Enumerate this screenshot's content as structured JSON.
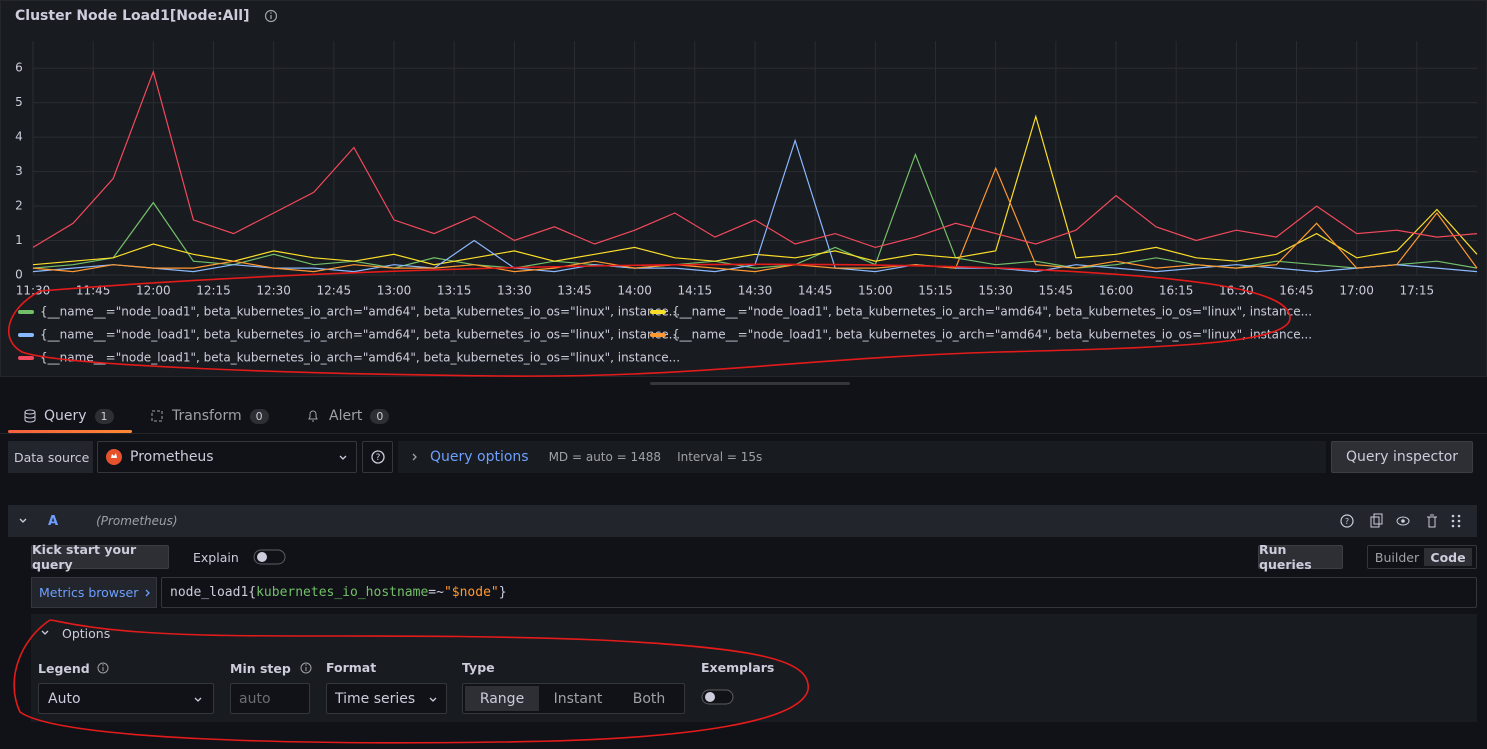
{
  "panel": {
    "title": "Cluster Node Load1[Node:All]"
  },
  "chart_data": {
    "type": "line",
    "x": [
      "11:30",
      "11:40",
      "11:50",
      "12:00",
      "12:10",
      "12:20",
      "12:30",
      "12:40",
      "12:50",
      "13:00",
      "13:10",
      "13:20",
      "13:30",
      "13:40",
      "13:50",
      "14:00",
      "14:10",
      "14:20",
      "14:30",
      "14:40",
      "14:50",
      "15:00",
      "15:10",
      "15:20",
      "15:30",
      "15:40",
      "15:50",
      "16:00",
      "16:10",
      "16:20",
      "16:30",
      "16:40",
      "16:50",
      "17:00",
      "17:10",
      "17:20",
      "17:30"
    ],
    "xlim": [
      "11:30",
      "17:30"
    ],
    "xticks": [
      "11:30",
      "11:45",
      "12:00",
      "12:15",
      "12:30",
      "12:45",
      "13:00",
      "13:15",
      "13:30",
      "13:45",
      "14:00",
      "14:15",
      "14:30",
      "14:45",
      "15:00",
      "15:15",
      "15:30",
      "15:45",
      "16:00",
      "16:15",
      "16:30",
      "16:45",
      "17:00",
      "17:15"
    ],
    "ylim": [
      0,
      6.5
    ],
    "yticks": [
      0,
      1,
      2,
      3,
      4,
      5,
      6
    ],
    "grid": true,
    "legend": "bottom",
    "series": [
      {
        "name": "{__name__=\"node_load1\", beta_kubernetes_io_arch=\"amd64\", beta_kubernetes_io_os=\"linux\", instance...",
        "color": "#73bf69",
        "values": [
          0.2,
          0.3,
          0.5,
          2.1,
          0.4,
          0.3,
          0.6,
          0.3,
          0.4,
          0.2,
          0.5,
          0.3,
          0.2,
          0.4,
          0.3,
          0.2,
          0.3,
          0.4,
          0.2,
          0.3,
          0.8,
          0.3,
          3.5,
          0.5,
          0.3,
          0.4,
          0.2,
          0.3,
          0.5,
          0.3,
          0.2,
          0.4,
          0.3,
          0.2,
          0.3,
          0.4,
          0.2
        ]
      },
      {
        "name": "{__name__=\"node_load1\", beta_kubernetes_io_arch=\"amd64\", beta_kubernetes_io_os=\"linux\", instance...",
        "color": "#fade2a",
        "values": [
          0.3,
          0.4,
          0.5,
          0.9,
          0.6,
          0.4,
          0.7,
          0.5,
          0.4,
          0.6,
          0.3,
          0.5,
          0.7,
          0.4,
          0.6,
          0.8,
          0.5,
          0.4,
          0.6,
          0.5,
          0.7,
          0.4,
          0.6,
          0.5,
          0.7,
          4.6,
          0.5,
          0.6,
          0.8,
          0.5,
          0.4,
          0.6,
          1.2,
          0.5,
          0.7,
          1.9,
          0.6
        ]
      },
      {
        "name": "{__name__=\"node_load1\", beta_kubernetes_io_arch=\"amd64\", beta_kubernetes_io_os=\"linux\", instance...",
        "color": "#8ab8ff",
        "values": [
          0.1,
          0.2,
          0.3,
          0.2,
          0.1,
          0.3,
          0.2,
          0.2,
          0.1,
          0.3,
          0.2,
          1.0,
          0.2,
          0.1,
          0.3,
          0.2,
          0.2,
          0.1,
          0.3,
          3.9,
          0.2,
          0.1,
          0.3,
          0.2,
          0.2,
          0.1,
          0.3,
          0.2,
          0.1,
          0.2,
          0.3,
          0.2,
          0.1,
          0.2,
          0.3,
          0.2,
          0.1
        ]
      },
      {
        "name": "{__name__=\"node_load1\", beta_kubernetes_io_arch=\"amd64\", beta_kubernetes_io_os=\"linux\", instance...",
        "color": "#ff9830",
        "values": [
          0.2,
          0.1,
          0.3,
          0.2,
          0.2,
          0.4,
          0.2,
          0.1,
          0.3,
          0.2,
          0.2,
          0.3,
          0.1,
          0.2,
          0.4,
          0.2,
          0.3,
          0.2,
          0.1,
          0.3,
          0.2,
          0.2,
          0.3,
          0.2,
          3.1,
          0.3,
          0.2,
          0.4,
          0.2,
          0.3,
          0.2,
          0.3,
          1.5,
          0.2,
          0.3,
          1.8,
          0.2
        ]
      },
      {
        "name": "{__name__=\"node_load1\", beta_kubernetes_io_arch=\"amd64\", beta_kubernetes_io_os=\"linux\", instance...",
        "color": "#f2495c",
        "values": [
          0.8,
          1.5,
          2.8,
          5.9,
          1.6,
          1.2,
          1.8,
          2.4,
          3.7,
          1.6,
          1.2,
          1.7,
          1.0,
          1.4,
          0.9,
          1.3,
          1.8,
          1.1,
          1.6,
          0.9,
          1.2,
          0.8,
          1.1,
          1.5,
          1.2,
          0.9,
          1.3,
          2.3,
          1.4,
          1.0,
          1.3,
          1.1,
          2.0,
          1.2,
          1.3,
          1.1,
          1.2
        ]
      }
    ]
  },
  "tabs": [
    {
      "label": "Query",
      "count": 1
    },
    {
      "label": "Transform",
      "count": 0
    },
    {
      "label": "Alert",
      "count": 0
    }
  ],
  "datasource": {
    "label": "Data source",
    "value": "Prometheus"
  },
  "query_options": {
    "label": "Query options",
    "md": "MD = auto = 1488",
    "interval": "Interval = 15s"
  },
  "query_inspector": "Query inspector",
  "query": {
    "ref": "A",
    "datasource": "(Prometheus)",
    "kick_start": "Kick start your query",
    "explain": "Explain",
    "run": "Run queries",
    "modes": [
      "Builder",
      "Code"
    ],
    "metrics_browser": "Metrics browser",
    "expr_parts": [
      "node_load1{",
      "kubernetes_io_hostname",
      "=~",
      "\"$node\"",
      "}"
    ],
    "options": {
      "title": "Options",
      "legend": {
        "label": "Legend",
        "value": "Auto"
      },
      "min_step": {
        "label": "Min step",
        "placeholder": "auto"
      },
      "format": {
        "label": "Format",
        "value": "Time series"
      },
      "type": {
        "label": "Type",
        "choices": [
          "Range",
          "Instant",
          "Both"
        ]
      },
      "exemplars": "Exemplars"
    }
  }
}
